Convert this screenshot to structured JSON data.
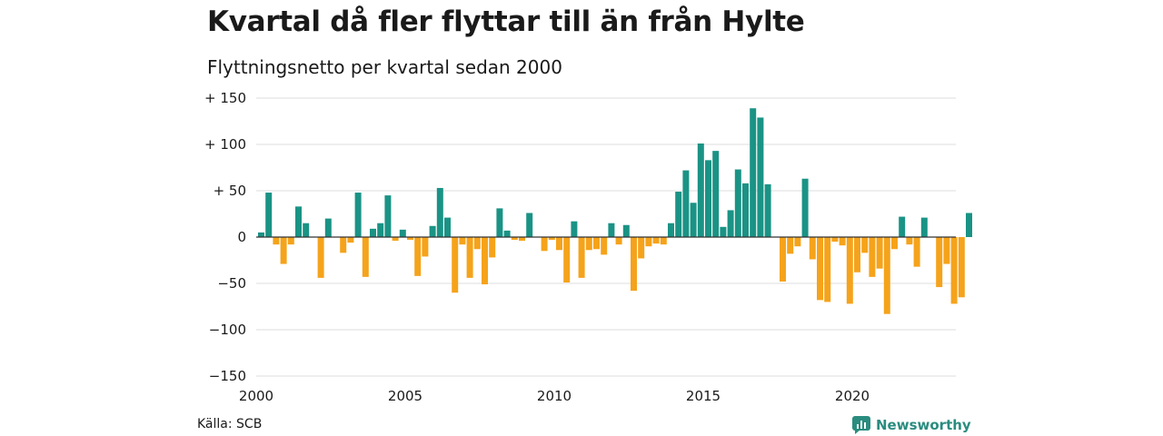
{
  "title": "Kvartal då fler flyttar till än från Hylte",
  "subtitle": "Flyttningsnetto per kvartal sedan 2000",
  "source": "Källa: SCB",
  "brand": {
    "name": "Newsworthy",
    "icon": "newsworthy-logo-icon",
    "color": "#2a8c7f"
  },
  "colors": {
    "positive": "#1a9385",
    "negative": "#f5a31b",
    "grid": "#dddddd",
    "zero_line": "#333333"
  },
  "chart_data": {
    "type": "bar",
    "x_start": "2000Q1",
    "x_ticks": [
      "2000",
      "2005",
      "2010",
      "2015",
      "2020"
    ],
    "y_ticks": [
      "+ 150",
      "+ 100",
      "+  50",
      "0",
      "−50",
      "−100",
      "−150"
    ],
    "ylim": [
      -150,
      150
    ],
    "grid": true,
    "series": [
      {
        "values": [
          5,
          48,
          -8,
          -29,
          -8,
          33,
          15,
          0,
          -44,
          20,
          0,
          -17,
          -6,
          48,
          -43,
          9,
          15,
          45,
          -4,
          8,
          -3,
          -42,
          -21,
          12,
          53,
          21,
          -60,
          -8,
          -44,
          -13,
          -51,
          -22,
          31,
          7,
          -3,
          -4,
          26,
          0,
          -15,
          -3,
          -14,
          -49,
          17,
          -44,
          -14,
          -13,
          -19,
          15,
          -8,
          13,
          -58,
          -23,
          -10,
          -7,
          -8,
          15,
          49,
          72,
          37,
          101,
          83,
          93,
          11,
          29,
          73,
          58,
          139,
          129,
          57,
          0,
          -48,
          -18,
          -10,
          63,
          -24,
          -68,
          -70,
          -5,
          -9,
          -72,
          -38,
          -17,
          -43,
          -34,
          -83,
          -13,
          22,
          -8,
          -32,
          21,
          0,
          -54,
          -29,
          -72,
          -65,
          26
        ]
      }
    ]
  }
}
